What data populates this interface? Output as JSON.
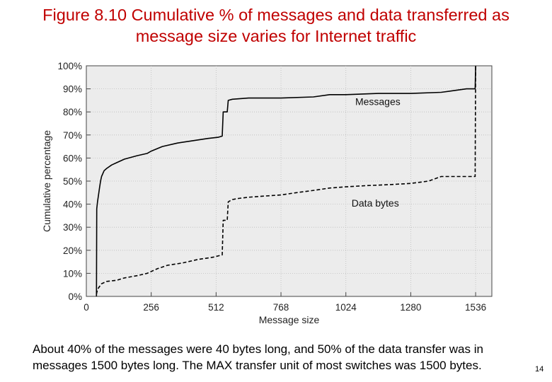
{
  "slide": {
    "title": "Figure 8.10 Cumulative % of messages and data transferred as message size varies for Internet traffic",
    "caption": "About 40% of the messages were 40 bytes long, and 50% of the data transfer was in messages 1500 bytes long. The MAX transfer unit of most switches was 1500 bytes.",
    "page_number": "14"
  },
  "chart_data": {
    "type": "line",
    "title": "",
    "xlabel": "Message size",
    "ylabel": "Cumulative percentage",
    "xlim": [
      0,
      1600
    ],
    "ylim": [
      0,
      100
    ],
    "x_ticks": [
      0,
      256,
      512,
      768,
      1024,
      1280,
      1536
    ],
    "x_tick_labels": [
      "0",
      "256",
      "512",
      "768",
      "1024",
      "1280",
      "1536"
    ],
    "y_ticks": [
      0,
      10,
      20,
      30,
      40,
      50,
      60,
      70,
      80,
      90,
      100
    ],
    "y_tick_labels": [
      "0%",
      "10%",
      "20%",
      "30%",
      "40%",
      "50%",
      "60%",
      "70%",
      "80%",
      "90%",
      "100%"
    ],
    "grid": true,
    "background": "#ececec",
    "series": [
      {
        "name": "Messages",
        "color": "#000000",
        "dash": false,
        "x": [
          40,
          41,
          44,
          48,
          52,
          56,
          60,
          70,
          80,
          100,
          120,
          150,
          200,
          240,
          256,
          300,
          360,
          420,
          480,
          520,
          536,
          540,
          556,
          560,
          576,
          640,
          768,
          896,
          960,
          1024,
          1152,
          1280,
          1400,
          1500,
          1530,
          1534,
          1536
        ],
        "y": [
          0,
          38,
          41,
          44,
          47,
          50,
          52,
          54.5,
          55.5,
          57,
          58,
          59.5,
          61,
          62,
          63,
          65,
          66.5,
          67.5,
          68.5,
          69,
          69.5,
          80,
          80,
          85,
          85.5,
          86,
          86,
          86.5,
          87.5,
          87.5,
          88,
          88,
          88.5,
          90,
          90,
          90,
          100
        ]
      },
      {
        "name": "Data bytes",
        "color": "#000000",
        "dash": true,
        "x": [
          40,
          44,
          50,
          60,
          80,
          120,
          150,
          200,
          240,
          280,
          320,
          380,
          440,
          500,
          536,
          540,
          556,
          560,
          576,
          600,
          640,
          700,
          768,
          830,
          900,
          960,
          1024,
          1100,
          1200,
          1280,
          1350,
          1400,
          1500,
          1530,
          1534,
          1536
        ],
        "y": [
          1,
          3,
          4,
          5.5,
          6.5,
          7,
          8,
          9,
          10,
          12,
          13.5,
          14.5,
          16,
          17,
          18,
          33,
          33,
          41,
          42,
          42.5,
          43,
          43.5,
          44,
          45,
          46,
          47,
          47.5,
          48,
          48.5,
          49,
          50,
          52,
          52,
          52,
          52,
          100
        ]
      }
    ],
    "annotations": [
      {
        "text": "Messages",
        "x": 1150,
        "y": 83
      },
      {
        "text": "Data bytes",
        "x": 1140,
        "y": 39
      }
    ]
  }
}
